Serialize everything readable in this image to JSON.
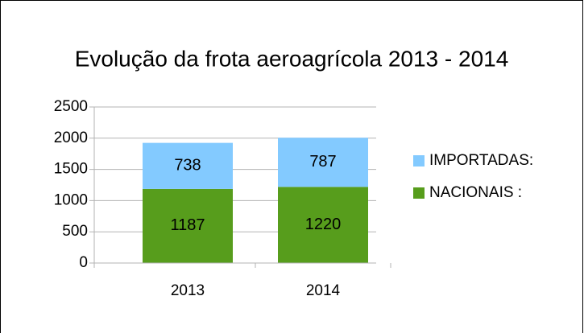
{
  "chart_data": {
    "type": "stacked_bar",
    "title": "Evolução da frota aeroagrícola 2013 - 2014",
    "categories": [
      "2013",
      "2014"
    ],
    "series": [
      {
        "name": "NACIONAIS :",
        "color": "#579d1c",
        "values": [
          1187,
          1220
        ]
      },
      {
        "name": "IMPORTADAS:",
        "color": "#83caff",
        "values": [
          738,
          787
        ]
      }
    ],
    "ylim": [
      0,
      2500
    ],
    "yticks": [
      0,
      500,
      1000,
      1500,
      2000,
      2500
    ],
    "grid": true,
    "legend": "right"
  }
}
